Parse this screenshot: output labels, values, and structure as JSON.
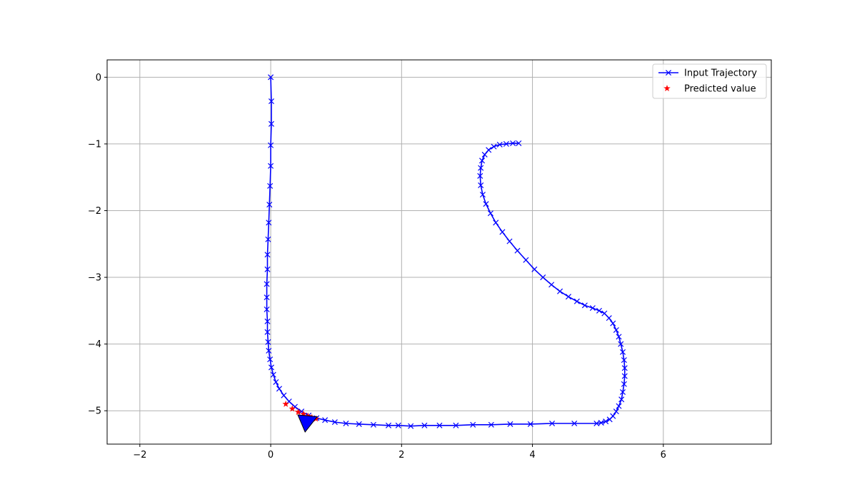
{
  "chart_data": {
    "type": "line",
    "title": "",
    "xlabel": "",
    "ylabel": "",
    "xlim": [
      -2.5,
      7.65
    ],
    "ylim": [
      -5.5,
      0.26
    ],
    "xticks": [
      -2,
      0,
      2,
      4,
      6
    ],
    "yticks": [
      0,
      -1,
      -2,
      -3,
      -4,
      -5
    ],
    "grid": true,
    "legend_position": "top-right",
    "colors": {
      "trajectory": "#0000ff",
      "predicted": "#ff0000",
      "arrow_fill": "#0000ff",
      "arrow_edge": "#000000",
      "grid": "#b0b0b0"
    },
    "series": [
      {
        "name": "Input Trajectory",
        "marker": "x",
        "color": "#0000ff",
        "points": [
          [
            0.0,
            0.0
          ],
          [
            0.01,
            -0.36
          ],
          [
            0.01,
            -0.7
          ],
          [
            0.0,
            -1.02
          ],
          [
            0.0,
            -1.33
          ],
          [
            -0.01,
            -1.63
          ],
          [
            -0.02,
            -1.91
          ],
          [
            -0.03,
            -2.18
          ],
          [
            -0.04,
            -2.43
          ],
          [
            -0.05,
            -2.66
          ],
          [
            -0.05,
            -2.88
          ],
          [
            -0.06,
            -3.1
          ],
          [
            -0.06,
            -3.3
          ],
          [
            -0.06,
            -3.48
          ],
          [
            -0.05,
            -3.66
          ],
          [
            -0.05,
            -3.82
          ],
          [
            -0.04,
            -3.97
          ],
          [
            -0.03,
            -4.1
          ],
          [
            -0.01,
            -4.23
          ],
          [
            0.01,
            -4.35
          ],
          [
            0.04,
            -4.46
          ],
          [
            0.08,
            -4.57
          ],
          [
            0.13,
            -4.67
          ],
          [
            0.2,
            -4.77
          ],
          [
            0.28,
            -4.86
          ],
          [
            0.37,
            -4.94
          ],
          [
            0.47,
            -5.01
          ],
          [
            0.58,
            -5.07
          ],
          [
            0.7,
            -5.11
          ],
          [
            0.83,
            -5.14
          ],
          [
            0.98,
            -5.17
          ],
          [
            1.15,
            -5.19
          ],
          [
            1.35,
            -5.2
          ],
          [
            1.57,
            -5.21
          ],
          [
            1.8,
            -5.22
          ],
          [
            1.95,
            -5.22
          ],
          [
            2.14,
            -5.23
          ],
          [
            2.35,
            -5.22
          ],
          [
            2.58,
            -5.22
          ],
          [
            2.83,
            -5.22
          ],
          [
            3.09,
            -5.21
          ],
          [
            3.37,
            -5.21
          ],
          [
            3.66,
            -5.2
          ],
          [
            3.97,
            -5.2
          ],
          [
            4.3,
            -5.19
          ],
          [
            4.64,
            -5.19
          ],
          [
            4.98,
            -5.19
          ],
          [
            5.05,
            -5.18
          ],
          [
            5.12,
            -5.16
          ],
          [
            5.18,
            -5.13
          ],
          [
            5.23,
            -5.08
          ],
          [
            5.28,
            -5.01
          ],
          [
            5.32,
            -4.93
          ],
          [
            5.36,
            -4.83
          ],
          [
            5.38,
            -4.72
          ],
          [
            5.4,
            -4.6
          ],
          [
            5.41,
            -4.48
          ],
          [
            5.41,
            -4.36
          ],
          [
            5.4,
            -4.24
          ],
          [
            5.38,
            -4.12
          ],
          [
            5.35,
            -4.0
          ],
          [
            5.32,
            -3.89
          ],
          [
            5.28,
            -3.79
          ],
          [
            5.23,
            -3.69
          ],
          [
            5.17,
            -3.61
          ],
          [
            5.1,
            -3.54
          ],
          [
            5.02,
            -3.5
          ],
          [
            4.92,
            -3.46
          ],
          [
            4.8,
            -3.42
          ],
          [
            4.68,
            -3.36
          ],
          [
            4.55,
            -3.29
          ],
          [
            4.42,
            -3.21
          ],
          [
            4.29,
            -3.11
          ],
          [
            4.16,
            -3.0
          ],
          [
            4.03,
            -2.88
          ],
          [
            3.9,
            -2.74
          ],
          [
            3.77,
            -2.6
          ],
          [
            3.65,
            -2.46
          ],
          [
            3.54,
            -2.32
          ],
          [
            3.44,
            -2.18
          ],
          [
            3.36,
            -2.04
          ],
          [
            3.29,
            -1.9
          ],
          [
            3.24,
            -1.76
          ],
          [
            3.21,
            -1.62
          ],
          [
            3.2,
            -1.48
          ],
          [
            3.21,
            -1.36
          ],
          [
            3.23,
            -1.25
          ],
          [
            3.27,
            -1.16
          ],
          [
            3.33,
            -1.09
          ],
          [
            3.41,
            -1.04
          ],
          [
            3.5,
            -1.01
          ],
          [
            3.6,
            -1.0
          ],
          [
            3.7,
            -0.99
          ],
          [
            3.79,
            -0.99
          ]
        ]
      },
      {
        "name": "Predicted value",
        "marker": "star",
        "color": "#ff0000",
        "points": [
          [
            0.23,
            -4.9
          ],
          [
            0.33,
            -4.97
          ],
          [
            0.42,
            -5.02
          ],
          [
            0.5,
            -5.05
          ],
          [
            0.57,
            -5.08
          ],
          [
            0.63,
            -5.1
          ],
          [
            0.69,
            -5.12
          ]
        ]
      }
    ],
    "arrow": {
      "from": [
        0.47,
        -5.19
      ],
      "to": [
        0.71,
        -5.09
      ],
      "fill": "#0000ff",
      "edge": "#000000"
    }
  }
}
